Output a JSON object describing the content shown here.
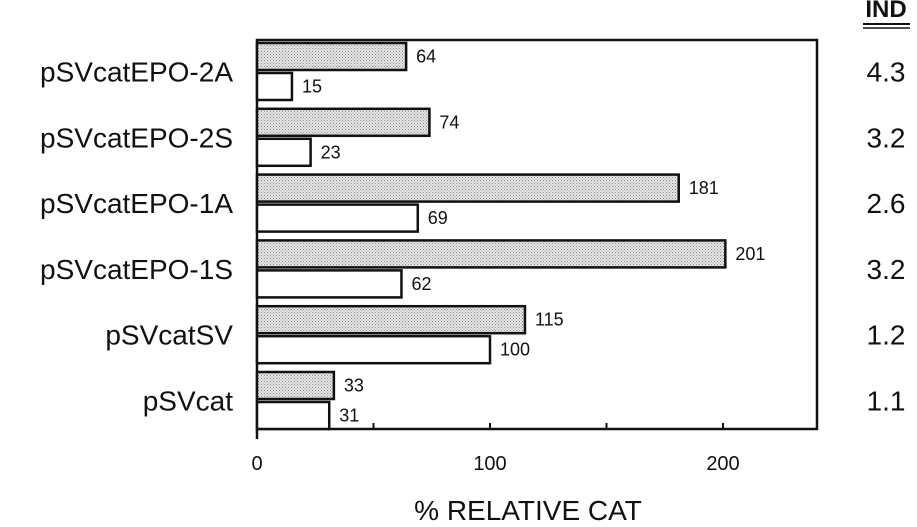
{
  "chart_data": {
    "type": "bar",
    "orientation": "horizontal",
    "categories": [
      "pSVcatEPO-2A",
      "pSVcatEPO-2S",
      "pSVcatEPO-1A",
      "pSVcatEPO-1S",
      "pSVcatSV",
      "pSVcat"
    ],
    "series": [
      {
        "values": [
          64,
          74,
          181,
          201,
          115,
          33
        ],
        "color": "#cfcfcf"
      },
      {
        "values": [
          15,
          23,
          69,
          62,
          100,
          31
        ],
        "color": "#ffffff"
      }
    ],
    "value_labels": {
      "shaded": [
        "64",
        "74",
        "181",
        "201",
        "115",
        "33"
      ],
      "open": [
        "15",
        "23",
        "69",
        "62",
        "100",
        "31"
      ]
    },
    "xlabel": "% RELATIVE CAT",
    "ylabel": "",
    "xlim": [
      0,
      240
    ],
    "xticks": [
      0,
      100,
      200
    ],
    "xtick_labels": [
      "0",
      "100",
      "200"
    ],
    "ind_header": "IND",
    "ind_values": [
      "4.3",
      "3.2",
      "2.6",
      "3.2",
      "1.2",
      "1.1"
    ],
    "grid": false
  }
}
